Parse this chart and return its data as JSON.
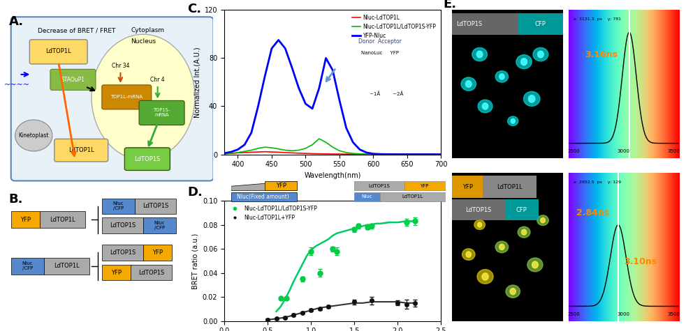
{
  "title": "",
  "panel_labels": [
    "A.",
    "B.",
    "C.",
    "D.",
    "E."
  ],
  "panel_label_fontsize": 13,
  "panel_label_fontweight": "bold",
  "spectrum_C": {
    "wavelength": [
      380,
      390,
      400,
      410,
      420,
      430,
      440,
      450,
      460,
      470,
      480,
      490,
      500,
      510,
      520,
      530,
      540,
      550,
      560,
      570,
      580,
      590,
      600,
      610,
      620,
      630,
      640,
      650,
      660,
      670,
      680,
      690,
      700
    ],
    "nluc_ldtop1l": [
      0.5,
      0.8,
      1.2,
      1.5,
      1.8,
      2.0,
      2.2,
      2.0,
      1.8,
      1.5,
      1.2,
      1.0,
      0.8,
      0.6,
      0.5,
      0.4,
      0.3,
      0.3,
      0.2,
      0.2,
      0.1,
      0.1,
      0.1,
      0.05,
      0.05,
      0.02,
      0.02,
      0.01,
      0.01,
      0.01,
      0.01,
      0.0,
      0.0
    ],
    "nluc_ldtop1l_yfp": [
      0.5,
      0.9,
      1.5,
      2.5,
      3.5,
      5.0,
      6.0,
      5.5,
      4.5,
      3.5,
      3.0,
      3.5,
      5.0,
      8.0,
      13.0,
      10.0,
      6.0,
      3.0,
      1.5,
      0.8,
      0.4,
      0.2,
      0.1,
      0.05,
      0.02,
      0.01,
      0.01,
      0.0,
      0.0,
      0.0,
      0.0,
      0.0,
      0.0
    ],
    "yfp_nluc": [
      1.0,
      2.0,
      4.0,
      8.0,
      18.0,
      40.0,
      65.0,
      88.0,
      95.0,
      88.0,
      72.0,
      55.0,
      42.0,
      38.0,
      55.0,
      80.0,
      70.0,
      45.0,
      22.0,
      10.0,
      4.0,
      1.5,
      0.5,
      0.2,
      0.1,
      0.05,
      0.02,
      0.01,
      0.0,
      0.0,
      0.0,
      0.0,
      0.0
    ],
    "xlabel": "Wavelength(nm)",
    "ylabel": "Normalized Int.(A.U.)",
    "xlim": [
      380,
      700
    ],
    "ylim": [
      0,
      120
    ],
    "yticks": [
      0,
      40,
      80,
      120
    ],
    "color_red": "#ff0000",
    "color_green": "#00bb00",
    "color_blue": "#0000ff",
    "legend_nluc": "Nluc-LdTOP1L",
    "legend_nluc_yfp": "Nluc-LdTOP1L/LdTOP1S-YFP",
    "legend_yfp_nluc": "YFP-Nluc"
  },
  "bret_D": {
    "green_x": [
      0.65,
      0.72,
      0.9,
      1.0,
      1.1,
      1.25,
      1.3,
      1.5,
      1.55,
      1.65,
      1.7,
      2.1,
      2.2
    ],
    "green_y": [
      0.019,
      0.019,
      0.035,
      0.058,
      0.04,
      0.06,
      0.058,
      0.076,
      0.079,
      0.078,
      0.079,
      0.082,
      0.083
    ],
    "green_yerr": [
      0.001,
      0.001,
      0.002,
      0.003,
      0.003,
      0.002,
      0.003,
      0.002,
      0.002,
      0.002,
      0.002,
      0.003,
      0.003
    ],
    "black_x": [
      0.5,
      0.6,
      0.7,
      0.8,
      0.9,
      1.0,
      1.1,
      1.2,
      1.5,
      1.7,
      2.0,
      2.1,
      2.2
    ],
    "black_y": [
      0.001,
      0.002,
      0.003,
      0.005,
      0.007,
      0.009,
      0.01,
      0.012,
      0.016,
      0.017,
      0.015,
      0.014,
      0.015
    ],
    "black_yerr": [
      0.001,
      0.001,
      0.001,
      0.001,
      0.001,
      0.001,
      0.001,
      0.001,
      0.002,
      0.003,
      0.002,
      0.004,
      0.003
    ],
    "green_fit_x": [
      0.6,
      0.65,
      0.7,
      0.75,
      0.8,
      0.85,
      0.9,
      0.95,
      1.0,
      1.05,
      1.1,
      1.15,
      1.2,
      1.25,
      1.3,
      1.35,
      1.4,
      1.45,
      1.5,
      1.55,
      1.6,
      1.65,
      1.7,
      1.75,
      1.8,
      1.9,
      2.0,
      2.1,
      2.2
    ],
    "green_fit_y": [
      0.008,
      0.012,
      0.018,
      0.025,
      0.033,
      0.04,
      0.047,
      0.054,
      0.059,
      0.062,
      0.064,
      0.066,
      0.068,
      0.071,
      0.073,
      0.074,
      0.075,
      0.076,
      0.077,
      0.078,
      0.079,
      0.08,
      0.08,
      0.081,
      0.081,
      0.082,
      0.082,
      0.083,
      0.083
    ],
    "black_fit_x": [
      0.5,
      0.6,
      0.7,
      0.8,
      0.9,
      1.0,
      1.1,
      1.2,
      1.3,
      1.4,
      1.5,
      1.6,
      1.7,
      1.8,
      1.9,
      2.0,
      2.1,
      2.2
    ],
    "black_fit_y": [
      0.001,
      0.002,
      0.003,
      0.005,
      0.007,
      0.009,
      0.011,
      0.012,
      0.013,
      0.014,
      0.015,
      0.015,
      0.016,
      0.016,
      0.016,
      0.016,
      0.015,
      0.015
    ],
    "xlabel": "YFP/Nluc (normalized)",
    "ylabel": "BRET ratio (a.u.)",
    "xlim": [
      0.0,
      2.5
    ],
    "ylim": [
      0.0,
      0.1
    ],
    "yticks": [
      0.0,
      0.02,
      0.04,
      0.06,
      0.08,
      0.1
    ],
    "xticks": [
      0.0,
      0.5,
      1.0,
      1.5,
      2.0,
      2.5
    ],
    "legend_green": "Nluc-LdTOP1L/LdTOP1S-YFP",
    "legend_black": "Nluc-LdTOP1L+YFP",
    "color_green": "#00cc44",
    "color_black": "#111111"
  },
  "panelA": {
    "box_color": "#aaccee",
    "cytoplasm_text": "Cytoplasm",
    "nucleus_color": "#ffffbb",
    "decrease_text": "Decrease of BRET / FRET",
    "kinetoplast_text": "Kinetoplast",
    "nucleus_text": "Nucleus",
    "ldtop1l_text": "LdTOP1L",
    "ldtop1s_text": "LdTOP1S",
    "chr34_text": "Chr 34",
    "chr4_text": "Chr 4"
  },
  "panelB": {
    "yfp_color": "#f5a800",
    "nluc_cfp_color": "#5588cc",
    "gray_color": "#aaaaaa",
    "ldtop1l_text": "LdTOP1L",
    "ldtop1s_text": "LdTOP1S",
    "yfp_text": "YFP",
    "nluc_text": "Nluc\n/CFP"
  },
  "panelE": {
    "top_label1": "LdTOP1S",
    "top_label2": "CFP",
    "bot_label1": "YFP",
    "bot_label2": "LdTOP1L",
    "bot_label3": "LdTOP1S",
    "bot_label4": "CFP",
    "time1": "3.16ns",
    "time2": "2.84ns",
    "time3": "3.10ns",
    "coord1": "x: 3131.3  ps    y: 781",
    "coord2": "x: 2952.5  ps    y: 129",
    "vline1": 0.55,
    "vline2": 0.45
  },
  "background_color": "#ffffff"
}
